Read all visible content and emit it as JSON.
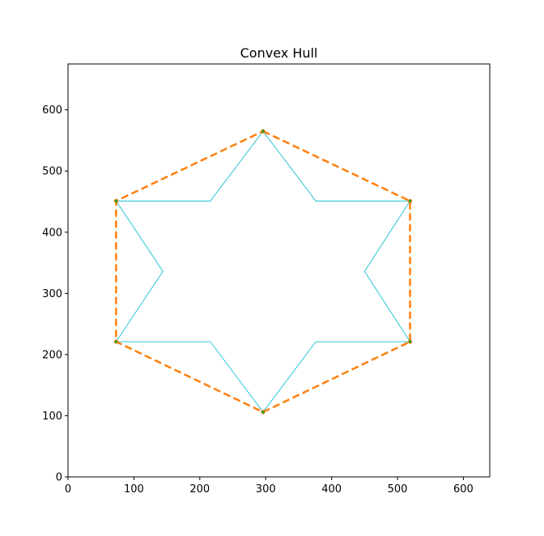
{
  "chart_data": {
    "type": "line",
    "title": "Convex Hull",
    "xlabel": "",
    "ylabel": "",
    "xlim": [
      0,
      640
    ],
    "ylim": [
      0,
      675
    ],
    "xticks": [
      0,
      100,
      200,
      300,
      400,
      500,
      600
    ],
    "yticks": [
      0,
      100,
      200,
      300,
      400,
      500,
      600
    ],
    "grid": false,
    "series": [
      {
        "role": "star-outline",
        "color": "#17becf",
        "style": "solid",
        "x": [
          296,
          376,
          519,
          450,
          519,
          376,
          296,
          216,
          73,
          144,
          73,
          216,
          296
        ],
        "y": [
          565,
          451,
          451,
          336,
          221,
          221,
          106,
          221,
          221,
          336,
          451,
          451,
          565
        ]
      },
      {
        "role": "convex-hull",
        "color": "#ff7f0e",
        "style": "dashed",
        "marker_color": "#2ca02c",
        "x": [
          296,
          519,
          519,
          296,
          73,
          73,
          296
        ],
        "y": [
          565,
          451,
          221,
          106,
          221,
          451,
          565
        ]
      }
    ]
  }
}
